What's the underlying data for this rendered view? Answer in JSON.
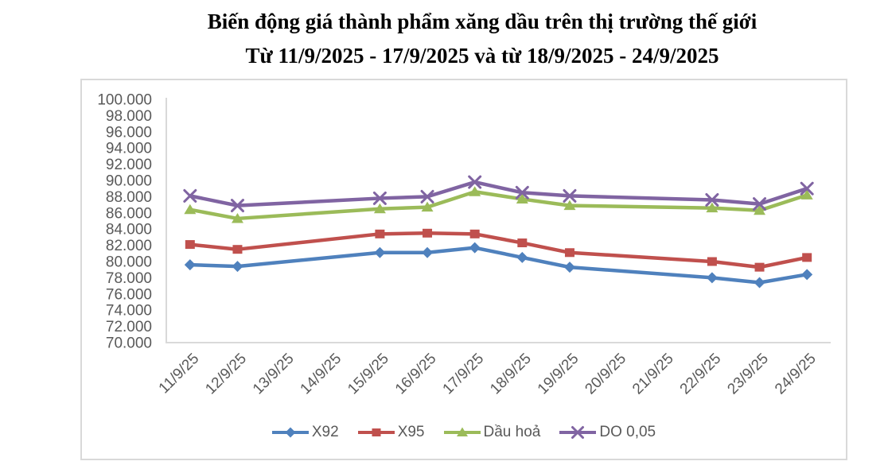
{
  "title": {
    "line1": "Biến động giá thành phẩm xăng dầu trên thị trường thế giới",
    "line2": "Từ 11/9/2025 - 17/9/2025 và từ 18/9/2025 - 24/9/2025"
  },
  "colors": {
    "title_text": "#000000",
    "label_text": "#595959",
    "axis_line": "#D9D9D9",
    "frame_border": "#D9D9D9",
    "background": "#FFFFFF",
    "series_blue": "#4F81BD",
    "series_red": "#C0504D",
    "series_green": "#9BBB59",
    "series_purple": "#8064A2"
  },
  "chart_data": {
    "type": "line",
    "title": "Biến động giá thành phẩm xăng dầu trên thị trường thế giới Từ 11/9/2025 - 17/9/2025 và từ 18/9/2025 - 24/9/2025",
    "xlabel": "",
    "ylabel": "",
    "grid": false,
    "legend_position": "bottom",
    "ylim": [
      70000,
      100000
    ],
    "y_tick_step": 2000,
    "y_tick_labels": [
      "100.000",
      "98.000",
      "96.000",
      "94.000",
      "92.000",
      "90.000",
      "88.000",
      "86.000",
      "84.000",
      "82.000",
      "80.000",
      "78.000",
      "76.000",
      "74.000",
      "72.000",
      "70.000"
    ],
    "categories": [
      "11/9/25",
      "12/9/25",
      "13/9/25",
      "14/9/25",
      "15/9/25",
      "16/9/25",
      "17/9/25",
      "18/9/25",
      "19/9/25",
      "20/9/25",
      "21/9/25",
      "22/9/25",
      "23/9/25",
      "24/9/25"
    ],
    "series": [
      {
        "name": "X92",
        "color": "#4F81BD",
        "marker": "diamond",
        "values": [
          79600,
          79400,
          null,
          null,
          81100,
          81100,
          81700,
          80500,
          79300,
          null,
          null,
          78000,
          77400,
          78400
        ]
      },
      {
        "name": "X95",
        "color": "#C0504D",
        "marker": "square",
        "values": [
          82100,
          81500,
          null,
          null,
          83400,
          83500,
          83400,
          82300,
          81100,
          null,
          null,
          80000,
          79300,
          80500
        ]
      },
      {
        "name": "Dầu hoả",
        "color": "#9BBB59",
        "marker": "triangle",
        "values": [
          86400,
          85300,
          null,
          null,
          86500,
          86700,
          88600,
          87700,
          86900,
          null,
          null,
          86600,
          86300,
          88200
        ]
      },
      {
        "name": "DO 0,05",
        "color": "#8064A2",
        "marker": "x",
        "values": [
          88100,
          86900,
          null,
          null,
          87800,
          88000,
          89800,
          88500,
          88100,
          null,
          null,
          87600,
          87100,
          89000
        ]
      }
    ]
  }
}
